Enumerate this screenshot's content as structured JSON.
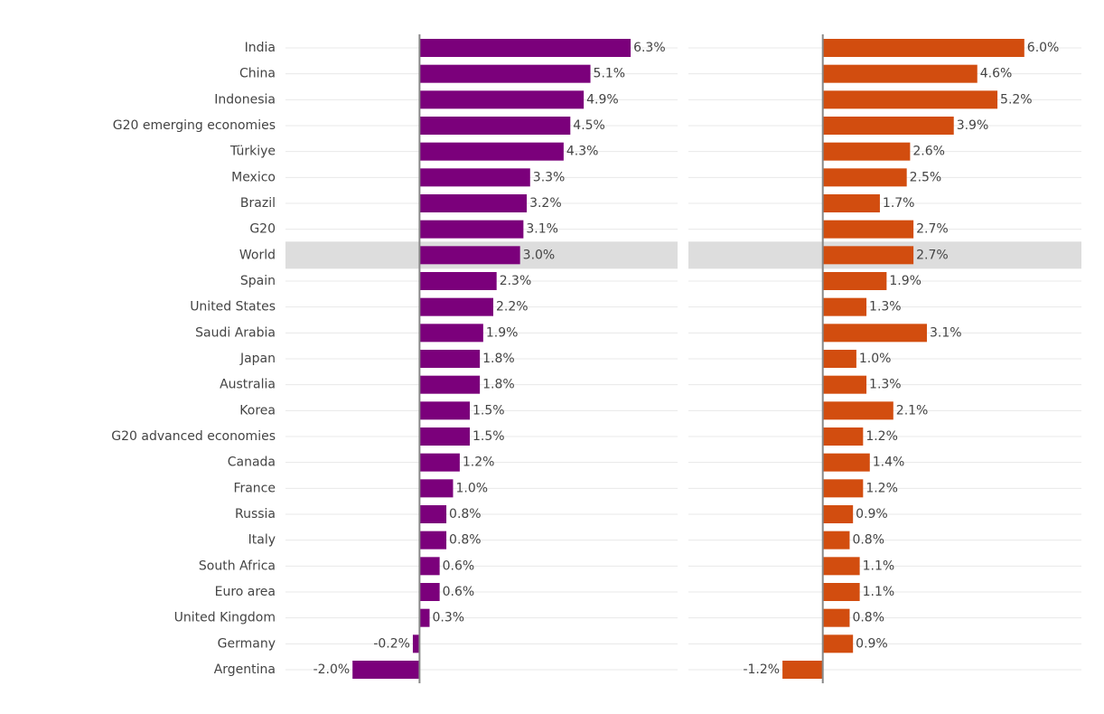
{
  "chart_data": {
    "type": "bar",
    "orientation": "horizontal",
    "categories": [
      "India",
      "China",
      "Indonesia",
      "G20 emerging economies",
      "Türkiye",
      "Mexico",
      "Brazil",
      "G20",
      "World",
      "Spain",
      "United States",
      "Saudi Arabia",
      "Japan",
      "Australia",
      "Korea",
      "G20 advanced economies",
      "Canada",
      "France",
      "Russia",
      "Italy",
      "South Africa",
      "Euro area",
      "United Kingdom",
      "Germany",
      "Argentina"
    ],
    "highlight": "World",
    "xlim": [
      -4,
      7.7
    ],
    "series": [
      {
        "color": "#7b007b",
        "values": [
          6.3,
          5.1,
          4.9,
          4.5,
          4.3,
          3.3,
          3.2,
          3.1,
          3.0,
          2.3,
          2.2,
          1.9,
          1.8,
          1.8,
          1.5,
          1.5,
          1.2,
          1.0,
          0.8,
          0.8,
          0.6,
          0.6,
          0.3,
          -0.2,
          -2.0
        ],
        "value_labels": [
          "6.3%",
          "5.1%",
          "4.9%",
          "4.5%",
          "4.3%",
          "3.3%",
          "3.2%",
          "3.1%",
          "3.0%",
          "2.3%",
          "2.2%",
          "1.9%",
          "1.8%",
          "1.8%",
          "1.5%",
          "1.5%",
          "1.2%",
          "1.0%",
          "0.8%",
          "0.8%",
          "0.6%",
          "0.6%",
          "0.3%",
          "-0.2%",
          "-2.0%"
        ]
      },
      {
        "color": "#d24d0f",
        "values": [
          6.0,
          4.6,
          5.2,
          3.9,
          2.6,
          2.5,
          1.7,
          2.7,
          2.7,
          1.9,
          1.3,
          3.1,
          1.0,
          1.3,
          2.1,
          1.2,
          1.4,
          1.2,
          0.9,
          0.8,
          1.1,
          1.1,
          0.8,
          0.9,
          -1.2
        ],
        "value_labels": [
          "6.0%",
          "4.6%",
          "5.2%",
          "3.9%",
          "2.6%",
          "2.5%",
          "1.7%",
          "2.7%",
          "2.7%",
          "1.9%",
          "1.3%",
          "3.1%",
          "1.0%",
          "1.3%",
          "2.1%",
          "1.2%",
          "1.4%",
          "1.2%",
          "0.9%",
          "0.8%",
          "1.1%",
          "1.1%",
          "0.8%",
          "0.9%",
          "-1.2%"
        ]
      }
    ]
  }
}
